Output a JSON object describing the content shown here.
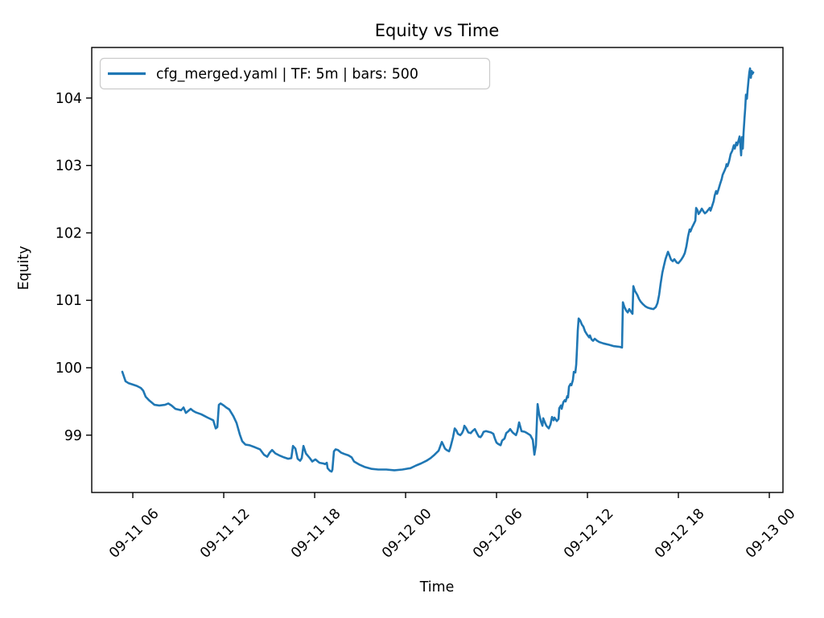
{
  "window": {
    "kind": "matplotlib-figure",
    "background": "#ffffff"
  },
  "chart_data": {
    "type": "line",
    "title": "Equity vs Time",
    "xlabel": "Time",
    "ylabel": "Equity",
    "legend_position": "upper left",
    "grid": false,
    "line_color": "#1f77b4",
    "x_unit": "hours since 09-11 00:00 (ticks shown as MM-DD HH)",
    "xlim": [
      3.29,
      48.9
    ],
    "ylim": [
      98.15,
      104.75
    ],
    "x_ticks": [
      {
        "t": 6,
        "label": "09-11 06"
      },
      {
        "t": 12,
        "label": "09-11 12"
      },
      {
        "t": 18,
        "label": "09-11 18"
      },
      {
        "t": 24,
        "label": "09-12 00"
      },
      {
        "t": 30,
        "label": "09-12 06"
      },
      {
        "t": 36,
        "label": "09-12 12"
      },
      {
        "t": 42,
        "label": "09-12 18"
      },
      {
        "t": 48,
        "label": "09-13 00"
      }
    ],
    "y_ticks": [
      99,
      100,
      101,
      102,
      103,
      104
    ],
    "series": [
      {
        "name": "cfg_merged.yaml | TF: 5m | bars: 500",
        "color": "#1f77b4",
        "points": [
          [
            5.31,
            99.94
          ],
          [
            5.52,
            99.8
          ],
          [
            5.73,
            99.77
          ],
          [
            6.0,
            99.75
          ],
          [
            6.27,
            99.73
          ],
          [
            6.53,
            99.7
          ],
          [
            6.69,
            99.66
          ],
          [
            6.85,
            99.57
          ],
          [
            7.06,
            99.52
          ],
          [
            7.43,
            99.45
          ],
          [
            7.75,
            99.44
          ],
          [
            8.12,
            99.45
          ],
          [
            8.34,
            99.47
          ],
          [
            8.55,
            99.44
          ],
          [
            8.81,
            99.39
          ],
          [
            9.19,
            99.37
          ],
          [
            9.35,
            99.41
          ],
          [
            9.5,
            99.33
          ],
          [
            9.82,
            99.39
          ],
          [
            9.98,
            99.36
          ],
          [
            10.14,
            99.34
          ],
          [
            10.51,
            99.31
          ],
          [
            10.94,
            99.26
          ],
          [
            11.31,
            99.22
          ],
          [
            11.47,
            99.1
          ],
          [
            11.58,
            99.12
          ],
          [
            11.68,
            99.45
          ],
          [
            11.79,
            99.47
          ],
          [
            12.0,
            99.44
          ],
          [
            12.16,
            99.41
          ],
          [
            12.37,
            99.38
          ],
          [
            12.64,
            99.28
          ],
          [
            12.85,
            99.18
          ],
          [
            13.06,
            99.01
          ],
          [
            13.22,
            98.91
          ],
          [
            13.43,
            98.86
          ],
          [
            13.7,
            98.85
          ],
          [
            14.07,
            98.82
          ],
          [
            14.39,
            98.79
          ],
          [
            14.66,
            98.71
          ],
          [
            14.87,
            98.68
          ],
          [
            15.03,
            98.74
          ],
          [
            15.19,
            98.78
          ],
          [
            15.4,
            98.73
          ],
          [
            15.66,
            98.7
          ],
          [
            15.98,
            98.67
          ],
          [
            16.25,
            98.65
          ],
          [
            16.46,
            98.66
          ],
          [
            16.57,
            98.84
          ],
          [
            16.73,
            98.8
          ],
          [
            16.88,
            98.65
          ],
          [
            17.04,
            98.62
          ],
          [
            17.15,
            98.66
          ],
          [
            17.26,
            98.84
          ],
          [
            17.42,
            98.73
          ],
          [
            17.68,
            98.66
          ],
          [
            17.84,
            98.61
          ],
          [
            18.05,
            98.64
          ],
          [
            18.21,
            98.61
          ],
          [
            18.32,
            98.59
          ],
          [
            18.58,
            98.58
          ],
          [
            18.69,
            98.57
          ],
          [
            18.8,
            98.59
          ],
          [
            18.85,
            98.51
          ],
          [
            19.01,
            98.47
          ],
          [
            19.12,
            98.46
          ],
          [
            19.17,
            98.49
          ],
          [
            19.27,
            98.76
          ],
          [
            19.38,
            98.79
          ],
          [
            19.54,
            98.78
          ],
          [
            19.75,
            98.74
          ],
          [
            19.96,
            98.72
          ],
          [
            20.23,
            98.7
          ],
          [
            20.44,
            98.67
          ],
          [
            20.6,
            98.61
          ],
          [
            20.97,
            98.56
          ],
          [
            21.29,
            98.53
          ],
          [
            21.77,
            98.5
          ],
          [
            22.2,
            98.49
          ],
          [
            22.73,
            98.49
          ],
          [
            23.26,
            98.48
          ],
          [
            23.79,
            98.49
          ],
          [
            24.32,
            98.51
          ],
          [
            24.69,
            98.55
          ],
          [
            25.01,
            98.58
          ],
          [
            25.38,
            98.62
          ],
          [
            25.65,
            98.66
          ],
          [
            25.91,
            98.71
          ],
          [
            26.18,
            98.77
          ],
          [
            26.39,
            98.9
          ],
          [
            26.5,
            98.85
          ],
          [
            26.6,
            98.8
          ],
          [
            26.71,
            98.78
          ],
          [
            26.87,
            98.76
          ],
          [
            26.97,
            98.83
          ],
          [
            27.13,
            98.97
          ],
          [
            27.24,
            99.1
          ],
          [
            27.35,
            99.07
          ],
          [
            27.45,
            99.02
          ],
          [
            27.61,
            99.0
          ],
          [
            27.72,
            99.03
          ],
          [
            27.82,
            99.08
          ],
          [
            27.88,
            99.14
          ],
          [
            27.98,
            99.11
          ],
          [
            28.14,
            99.04
          ],
          [
            28.3,
            99.03
          ],
          [
            28.41,
            99.06
          ],
          [
            28.57,
            99.09
          ],
          [
            28.73,
            99.02
          ],
          [
            28.83,
            98.98
          ],
          [
            28.94,
            98.97
          ],
          [
            29.04,
            99.0
          ],
          [
            29.15,
            99.05
          ],
          [
            29.31,
            99.06
          ],
          [
            29.47,
            99.05
          ],
          [
            29.63,
            99.04
          ],
          [
            29.79,
            99.02
          ],
          [
            29.89,
            98.95
          ],
          [
            30.0,
            98.89
          ],
          [
            30.11,
            98.87
          ],
          [
            30.27,
            98.85
          ],
          [
            30.37,
            98.92
          ],
          [
            30.53,
            98.95
          ],
          [
            30.64,
            99.03
          ],
          [
            30.8,
            99.06
          ],
          [
            30.9,
            99.09
          ],
          [
            31.06,
            99.04
          ],
          [
            31.17,
            99.02
          ],
          [
            31.28,
            99.0
          ],
          [
            31.38,
            99.06
          ],
          [
            31.49,
            99.19
          ],
          [
            31.65,
            99.06
          ],
          [
            31.86,
            99.05
          ],
          [
            32.02,
            99.03
          ],
          [
            32.23,
            99.0
          ],
          [
            32.39,
            98.93
          ],
          [
            32.5,
            98.71
          ],
          [
            32.6,
            98.85
          ],
          [
            32.71,
            99.46
          ],
          [
            32.81,
            99.31
          ],
          [
            32.92,
            99.21
          ],
          [
            33.03,
            99.14
          ],
          [
            33.08,
            99.25
          ],
          [
            33.19,
            99.19
          ],
          [
            33.29,
            99.14
          ],
          [
            33.45,
            99.1
          ],
          [
            33.56,
            99.16
          ],
          [
            33.66,
            99.27
          ],
          [
            33.77,
            99.22
          ],
          [
            33.82,
            99.26
          ],
          [
            33.98,
            99.21
          ],
          [
            34.09,
            99.24
          ],
          [
            34.14,
            99.4
          ],
          [
            34.25,
            99.44
          ],
          [
            34.3,
            99.39
          ],
          [
            34.41,
            99.49
          ],
          [
            34.51,
            99.52
          ],
          [
            34.56,
            99.5
          ],
          [
            34.67,
            99.58
          ],
          [
            34.72,
            99.56
          ],
          [
            34.78,
            99.72
          ],
          [
            34.88,
            99.76
          ],
          [
            34.94,
            99.74
          ],
          [
            35.04,
            99.82
          ],
          [
            35.1,
            99.94
          ],
          [
            35.2,
            99.93
          ],
          [
            35.26,
            100.05
          ],
          [
            35.31,
            100.3
          ],
          [
            35.36,
            100.55
          ],
          [
            35.42,
            100.73
          ],
          [
            35.52,
            100.7
          ],
          [
            35.63,
            100.64
          ],
          [
            35.73,
            100.61
          ],
          [
            35.84,
            100.54
          ],
          [
            35.95,
            100.5
          ],
          [
            36.11,
            100.45
          ],
          [
            36.16,
            100.48
          ],
          [
            36.27,
            100.42
          ],
          [
            36.37,
            100.4
          ],
          [
            36.48,
            100.43
          ],
          [
            36.64,
            100.4
          ],
          [
            36.8,
            100.38
          ],
          [
            37.06,
            100.36
          ],
          [
            37.43,
            100.34
          ],
          [
            37.75,
            100.32
          ],
          [
            38.12,
            100.31
          ],
          [
            38.28,
            100.3
          ],
          [
            38.34,
            100.97
          ],
          [
            38.44,
            100.9
          ],
          [
            38.55,
            100.85
          ],
          [
            38.66,
            100.82
          ],
          [
            38.76,
            100.87
          ],
          [
            38.87,
            100.83
          ],
          [
            38.97,
            100.8
          ],
          [
            39.03,
            101.21
          ],
          [
            39.13,
            101.14
          ],
          [
            39.29,
            101.08
          ],
          [
            39.4,
            101.02
          ],
          [
            39.51,
            100.98
          ],
          [
            39.67,
            100.94
          ],
          [
            39.82,
            100.91
          ],
          [
            39.98,
            100.89
          ],
          [
            40.14,
            100.88
          ],
          [
            40.35,
            100.87
          ],
          [
            40.51,
            100.9
          ],
          [
            40.62,
            100.96
          ],
          [
            40.73,
            101.08
          ],
          [
            40.83,
            101.25
          ],
          [
            40.94,
            101.41
          ],
          [
            41.04,
            101.51
          ],
          [
            41.15,
            101.61
          ],
          [
            41.31,
            101.72
          ],
          [
            41.42,
            101.66
          ],
          [
            41.52,
            101.6
          ],
          [
            41.63,
            101.58
          ],
          [
            41.73,
            101.61
          ],
          [
            41.89,
            101.56
          ],
          [
            42.0,
            101.55
          ],
          [
            42.11,
            101.58
          ],
          [
            42.21,
            101.61
          ],
          [
            42.32,
            101.65
          ],
          [
            42.42,
            101.7
          ],
          [
            42.53,
            101.8
          ],
          [
            42.64,
            101.95
          ],
          [
            42.74,
            102.05
          ],
          [
            42.8,
            102.02
          ],
          [
            42.9,
            102.08
          ],
          [
            43.01,
            102.13
          ],
          [
            43.12,
            102.18
          ],
          [
            43.17,
            102.37
          ],
          [
            43.27,
            102.33
          ],
          [
            43.33,
            102.28
          ],
          [
            43.43,
            102.31
          ],
          [
            43.54,
            102.36
          ],
          [
            43.65,
            102.32
          ],
          [
            43.75,
            102.29
          ],
          [
            43.86,
            102.31
          ],
          [
            43.96,
            102.34
          ],
          [
            44.07,
            102.37
          ],
          [
            44.12,
            102.33
          ],
          [
            44.23,
            102.4
          ],
          [
            44.33,
            102.47
          ],
          [
            44.39,
            102.55
          ],
          [
            44.49,
            102.62
          ],
          [
            44.55,
            102.58
          ],
          [
            44.65,
            102.65
          ],
          [
            44.76,
            102.73
          ],
          [
            44.86,
            102.8
          ],
          [
            44.92,
            102.86
          ],
          [
            45.02,
            102.91
          ],
          [
            45.13,
            102.97
          ],
          [
            45.18,
            103.02
          ],
          [
            45.24,
            102.99
          ],
          [
            45.34,
            103.06
          ],
          [
            45.4,
            103.12
          ],
          [
            45.45,
            103.17
          ],
          [
            45.56,
            103.22
          ],
          [
            45.61,
            103.26
          ],
          [
            45.66,
            103.3
          ],
          [
            45.72,
            103.25
          ],
          [
            45.82,
            103.34
          ],
          [
            45.88,
            103.3
          ],
          [
            45.98,
            103.38
          ],
          [
            46.04,
            103.43
          ],
          [
            46.09,
            103.3
          ],
          [
            46.14,
            103.15
          ],
          [
            46.2,
            103.42
          ],
          [
            46.25,
            103.25
          ],
          [
            46.3,
            103.48
          ],
          [
            46.36,
            103.7
          ],
          [
            46.41,
            103.85
          ],
          [
            46.46,
            104.05
          ],
          [
            46.52,
            103.99
          ],
          [
            46.57,
            104.12
          ],
          [
            46.62,
            104.25
          ],
          [
            46.68,
            104.38
          ],
          [
            46.73,
            104.44
          ],
          [
            46.78,
            104.3
          ],
          [
            46.84,
            104.4
          ],
          [
            46.89,
            104.36
          ],
          [
            46.94,
            104.38
          ]
        ]
      }
    ]
  }
}
